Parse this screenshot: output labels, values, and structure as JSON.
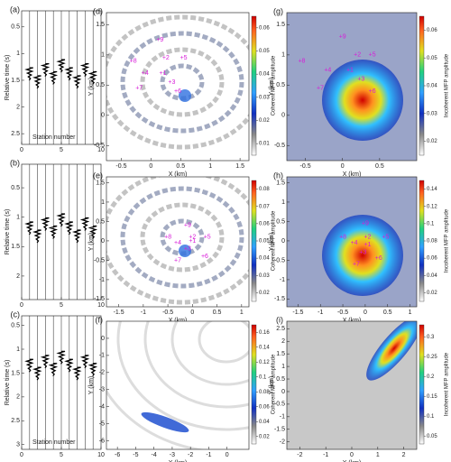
{
  "chart_data": [
    {
      "type": "waveform",
      "letter": "(a)",
      "xlim": [
        0,
        10
      ],
      "ylim": [
        0.2,
        2.7
      ],
      "xticks": [
        0,
        5,
        10
      ],
      "yticks": [
        0.5,
        1,
        1.5,
        2,
        2.5
      ],
      "ylabel": "Relative time (s)",
      "xlabel": "Station number"
    },
    {
      "type": "waveform",
      "letter": "(b)",
      "xlim": [
        0,
        10
      ],
      "ylim": [
        0.1,
        2.4
      ],
      "xticks": [
        0,
        5,
        10
      ],
      "yticks": [
        0.5,
        1,
        1.5,
        2
      ],
      "ylabel": "Relative time (s)"
    },
    {
      "type": "waveform",
      "letter": "(c)",
      "xlim": [
        0,
        10
      ],
      "ylim": [
        0.3,
        3.1
      ],
      "xticks": [
        0,
        5,
        10
      ],
      "yticks": [
        0.5,
        1,
        1.5,
        2,
        2.5,
        3
      ],
      "ylabel": "Relative time (s)",
      "xlabel": "Station number"
    },
    {
      "type": "map",
      "letter": "(d)",
      "xlim": [
        -0.75,
        1.65
      ],
      "ylim": [
        -0.75,
        1.7
      ],
      "xticks": [
        -0.5,
        0,
        0.5,
        1,
        1.5
      ],
      "yticks": [
        -0.5,
        0,
        0.5,
        1,
        1.5
      ],
      "xlabel": "X (km)",
      "ylabel": "Y (km)",
      "colorbar": {
        "label": "Coherent MFP amplitude",
        "lim": [
          0.005,
          0.065
        ],
        "ticks": [
          0.01,
          0.02,
          0.03,
          0.04,
          0.05,
          0.06
        ]
      },
      "stations": [
        {
          "label": "+9",
          "x": 0.15,
          "y": 1.25
        },
        {
          "label": "+8",
          "x": -0.3,
          "y": 0.9
        },
        {
          "label": "+2",
          "x": 0.25,
          "y": 0.95
        },
        {
          "label": "+5",
          "x": 0.55,
          "y": 0.95
        },
        {
          "label": "+4",
          "x": -0.1,
          "y": 0.7
        },
        {
          "label": "+1",
          "x": 0.2,
          "y": 0.7
        },
        {
          "label": "+3",
          "x": 0.35,
          "y": 0.55
        },
        {
          "label": "+7",
          "x": -0.2,
          "y": 0.45
        },
        {
          "label": "+6",
          "x": 0.45,
          "y": 0.4
        }
      ]
    },
    {
      "type": "map",
      "letter": "(e)",
      "xlim": [
        -1.75,
        1.15
      ],
      "ylim": [
        -1.7,
        1.65
      ],
      "xticks": [
        -1.5,
        -1,
        -0.5,
        0,
        0.5,
        1
      ],
      "yticks": [
        -1.5,
        -1,
        -0.5,
        0,
        0.5,
        1,
        1.5
      ],
      "xlabel": "X (km)",
      "ylabel": "Y (km)",
      "colorbar": {
        "label": "Coherent MFP amplitude",
        "lim": [
          0.015,
          0.085
        ],
        "ticks": [
          0.02,
          0.03,
          0.04,
          0.05,
          0.06,
          0.07,
          0.08
        ]
      },
      "stations": [
        {
          "label": "+9",
          "x": -0.1,
          "y": 0.4
        },
        {
          "label": "+8",
          "x": -0.5,
          "y": 0.1
        },
        {
          "label": "+2",
          "x": 0,
          "y": 0.1
        },
        {
          "label": "+5",
          "x": 0.3,
          "y": 0.1
        },
        {
          "label": "+4",
          "x": -0.3,
          "y": -0.05
        },
        {
          "label": "+1",
          "x": 0,
          "y": 0
        },
        {
          "label": "+3",
          "x": -0.1,
          "y": -0.2
        },
        {
          "label": "+7",
          "x": -0.3,
          "y": -0.5
        },
        {
          "label": "+6",
          "x": 0.25,
          "y": -0.4
        }
      ]
    },
    {
      "type": "map",
      "letter": "(f)",
      "xlim": [
        -6.6,
        1.2
      ],
      "ylim": [
        -6.5,
        1.0
      ],
      "xticks": [
        -6,
        -5,
        -4,
        -3,
        -2,
        -1,
        0
      ],
      "yticks": [
        -6,
        -5,
        -4,
        -3,
        -2,
        -1,
        0
      ],
      "xlabel": "X (km)",
      "ylabel": "Y (km)",
      "colorbar": {
        "label": "Coherent MFP amplitude",
        "lim": [
          0.01,
          0.17
        ],
        "ticks": [
          0.02,
          0.04,
          0.06,
          0.08,
          0.1,
          0.12,
          0.14,
          0.16
        ]
      }
    },
    {
      "type": "map",
      "letter": "(g)",
      "xlim": [
        -0.75,
        1.0
      ],
      "ylim": [
        -0.75,
        1.7
      ],
      "xticks": [
        -0.5,
        0,
        0.5
      ],
      "yticks": [
        -0.5,
        0,
        0.5,
        1,
        1.5
      ],
      "xlabel": "X (km)",
      "ylabel": "Y (km)",
      "colorbar": {
        "label": "Incoherent MFP amplitude",
        "lim": [
          0.015,
          0.065
        ],
        "ticks": [
          0.02,
          0.03,
          0.04,
          0.05,
          0.06
        ]
      },
      "stations": [
        {
          "label": "+9",
          "x": 0.0,
          "y": 1.3
        },
        {
          "label": "+8",
          "x": -0.55,
          "y": 0.9
        },
        {
          "label": "+2",
          "x": 0.2,
          "y": 1.0
        },
        {
          "label": "+5",
          "x": 0.4,
          "y": 1.0
        },
        {
          "label": "+4",
          "x": -0.2,
          "y": 0.75
        },
        {
          "label": "+1",
          "x": 0.1,
          "y": 0.75
        },
        {
          "label": "+3",
          "x": 0.25,
          "y": 0.6
        },
        {
          "label": "+7",
          "x": -0.3,
          "y": 0.45
        },
        {
          "label": "+6",
          "x": 0.4,
          "y": 0.4
        }
      ]
    },
    {
      "type": "map",
      "letter": "(h)",
      "xlim": [
        -1.75,
        1.15
      ],
      "ylim": [
        -1.7,
        1.65
      ],
      "xticks": [
        -1.5,
        -1,
        -0.5,
        0,
        0.5,
        1
      ],
      "yticks": [
        -1.5,
        -1,
        -0.5,
        0,
        0.5,
        1,
        1.5
      ],
      "xlabel": "X (km)",
      "ylabel": "Y (km)",
      "colorbar": {
        "label": "Incoherent MFP amplitude",
        "lim": [
          0.01,
          0.15
        ],
        "ticks": [
          0.02,
          0.04,
          0.06,
          0.08,
          0.1,
          0.12,
          0.14
        ]
      },
      "stations": [
        {
          "label": "+9",
          "x": 0,
          "y": 0.45
        },
        {
          "label": "+8",
          "x": -0.5,
          "y": 0.1
        },
        {
          "label": "+2",
          "x": 0.05,
          "y": 0.1
        },
        {
          "label": "+5",
          "x": 0.45,
          "y": 0.1
        },
        {
          "label": "+4",
          "x": -0.25,
          "y": -0.05
        },
        {
          "label": "+1",
          "x": 0.05,
          "y": -0.1
        },
        {
          "label": "+3",
          "x": -0.05,
          "y": -0.3
        },
        {
          "label": "+7",
          "x": -0.2,
          "y": -0.6
        },
        {
          "label": "+6",
          "x": 0.3,
          "y": -0.45
        }
      ]
    },
    {
      "type": "map",
      "letter": "(i)",
      "xlim": [
        -2.5,
        2.5
      ],
      "ylim": [
        -2.3,
        2.8
      ],
      "xticks": [
        -2,
        -1,
        0,
        1,
        2
      ],
      "yticks": [
        -2,
        -1.5,
        -1,
        -0.5,
        0,
        0.5,
        1,
        1.5,
        2,
        2.5
      ],
      "xlabel": "X (km)",
      "ylabel": "Y (km)",
      "colorbar": {
        "label": "Incoherent MFP amplitude",
        "lim": [
          0.03,
          0.33
        ],
        "ticks": [
          0.05,
          0.1,
          0.15,
          0.2,
          0.25,
          0.3
        ]
      }
    }
  ]
}
